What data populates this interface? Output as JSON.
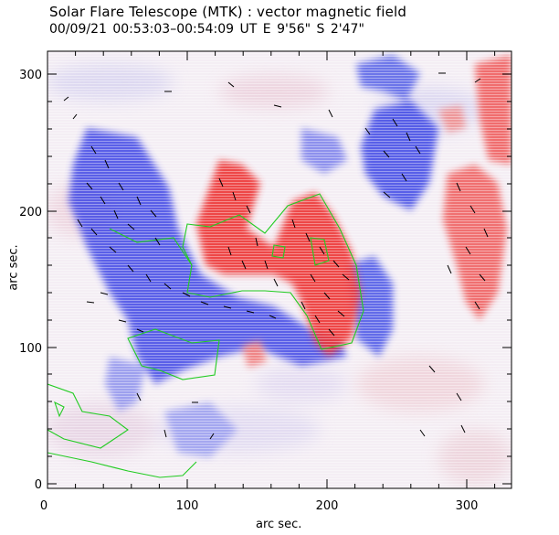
{
  "header": {
    "title": "Solar Flare Telescope (MTK) : vector magnetic field",
    "subtitle": "00/09/21   00:53:03–00:54:09 UT     E 9'56\"   S 2'47\""
  },
  "axes": {
    "xlabel": "arc sec.",
    "ylabel": "arc sec.",
    "xticks": [
      "0",
      "100",
      "200",
      "300"
    ],
    "yticks": [
      "0",
      "100",
      "200",
      "300"
    ]
  },
  "colors": {
    "positive": "#f03a3a",
    "negative": "#3a47e8",
    "contour": "#22cc22"
  }
}
